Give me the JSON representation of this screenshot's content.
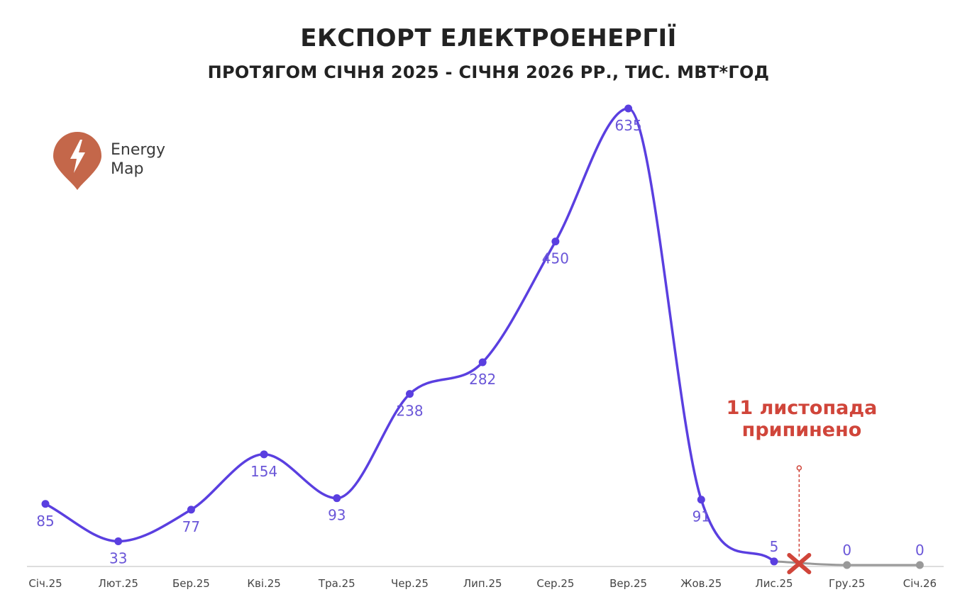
{
  "title": "ЕКСПОРТ ЕЛЕКТРОЕНЕРГІЇ",
  "subtitle": "ПРОТЯГОМ СІЧНЯ 2025 - СІЧНЯ 2026 РР., ТИС. МВТ*ГОД",
  "logo": {
    "line1": "Energy",
    "line2": "Map",
    "icon": "lightning-pin-icon",
    "color": "#c4674a"
  },
  "annotation": {
    "line1": "11 листопада",
    "line2": "припинено",
    "color": "#d0453a",
    "marker": "x-mark-icon"
  },
  "colors": {
    "series": "#5a3fe0",
    "stopped": "#999999",
    "axis": "#dddddd",
    "label": "#6a56d8",
    "tick": "#444444"
  },
  "chart_data": {
    "type": "line",
    "title": "ЕКСПОРТ ЕЛЕКТРОЕНЕРГІЇ",
    "subtitle": "ПРОТЯГОМ СІЧНЯ 2025 - СІЧНЯ 2026 РР., ТИС. МВТ*ГОД",
    "categories": [
      "Січ.25",
      "Лют.25",
      "Бер.25",
      "Кві.25",
      "Тра.25",
      "Чер.25",
      "Лип.25",
      "Сер.25",
      "Вер.25",
      "Жов.25",
      "Лис.25",
      "Гру.25",
      "Січ.26"
    ],
    "values": [
      85,
      33,
      77,
      154,
      93,
      238,
      282,
      450,
      635,
      91,
      5,
      0,
      0
    ],
    "labels": [
      "85",
      "33",
      "77",
      "154",
      "93",
      "238",
      "282",
      "450",
      "635",
      "91",
      "5",
      "0",
      "0"
    ],
    "stopped_from_index": 10,
    "ylim": [
      0,
      635
    ],
    "grid": false,
    "legend": "none"
  }
}
